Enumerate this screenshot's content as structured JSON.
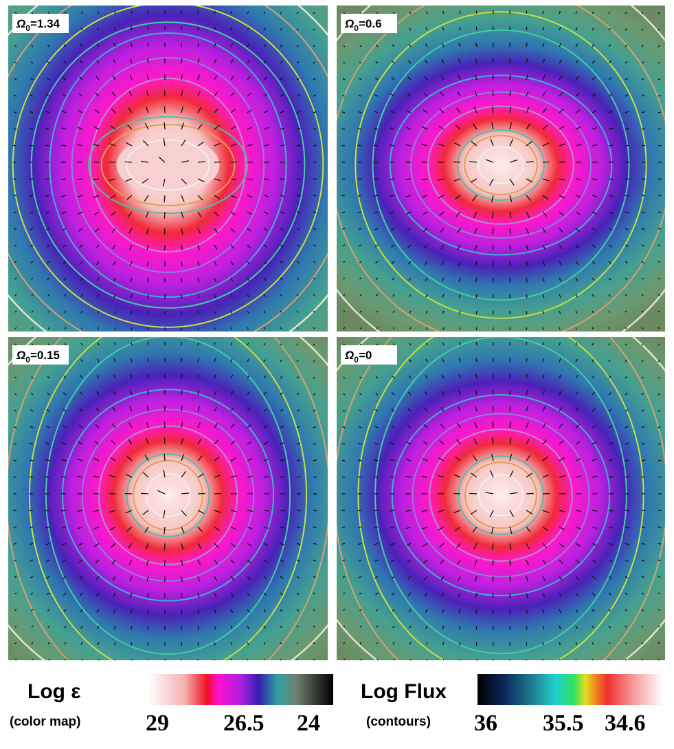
{
  "panels": [
    {
      "symbol": "Ω",
      "sub": "0",
      "rest": "=1.34"
    },
    {
      "symbol": "Ω",
      "sub": "0",
      "rest": "=0.6"
    },
    {
      "symbol": "Ω",
      "sub": "0",
      "rest": "=0.15"
    },
    {
      "symbol": "Ω",
      "sub": "0",
      "rest": "=0"
    }
  ],
  "colorbars": [
    {
      "title": "Log ε",
      "subtitle": "(color map)",
      "ticks": [
        "29",
        "26.5",
        "24"
      ]
    },
    {
      "title": "Log Flux",
      "subtitle": "(contours)",
      "ticks": [
        "36",
        "35.5",
        "34.6"
      ]
    }
  ]
}
